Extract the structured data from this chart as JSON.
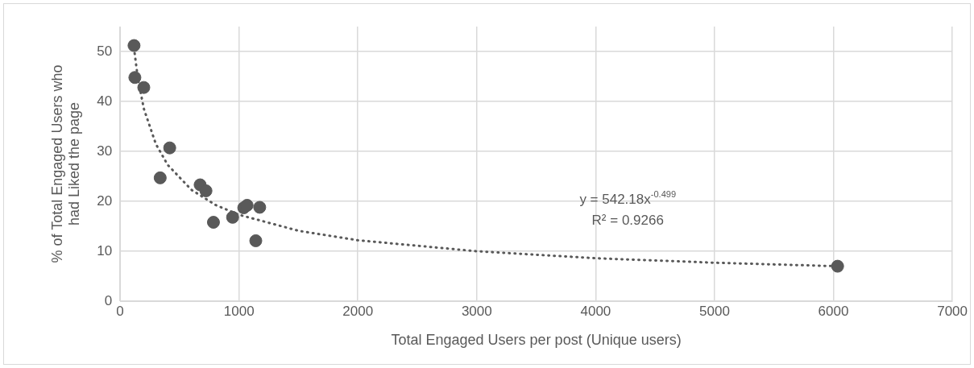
{
  "chart_data": {
    "type": "scatter",
    "xlabel": "Total Engaged Users per post (Unique users)",
    "ylabel": "% of Total Engaged Users who had Liked the page",
    "series": [
      {
        "type": "scatter",
        "color": "#595959",
        "x": [
          117,
          124,
          199,
          417,
          337,
          673,
          722,
          785,
          946,
          1040,
          1068,
          1174,
          1141,
          6035
        ],
        "values": [
          51.2,
          44.8,
          42.8,
          30.7,
          24.7,
          23.3,
          22.1,
          15.8,
          16.8,
          18.7,
          19.2,
          18.8,
          12.1,
          7.0
        ]
      },
      {
        "type": "line",
        "color": "#595959",
        "line_style": "dotted",
        "marker": "none",
        "x": [
          110,
          150,
          200,
          300,
          400,
          600,
          800,
          1000,
          1500,
          2000,
          3000,
          4000,
          5000,
          6035
        ],
        "values": [
          51.9,
          44.5,
          38.5,
          31.5,
          27.3,
          22.3,
          19.3,
          17.3,
          14.1,
          12.2,
          10.0,
          8.6,
          7.7,
          7.0
        ]
      }
    ],
    "marker": "circle",
    "xlim": [
      0,
      7000
    ],
    "xticks": [
      0,
      1000,
      2000,
      3000,
      4000,
      5000,
      6000,
      7000
    ],
    "ylim": [
      0,
      55
    ],
    "yticks": [
      0,
      10,
      20,
      30,
      40,
      50
    ],
    "grid": true,
    "legend": false,
    "annotations": [
      "y = 542.18x$^{-0.499}$",
      "R² = 0.9266"
    ]
  }
}
